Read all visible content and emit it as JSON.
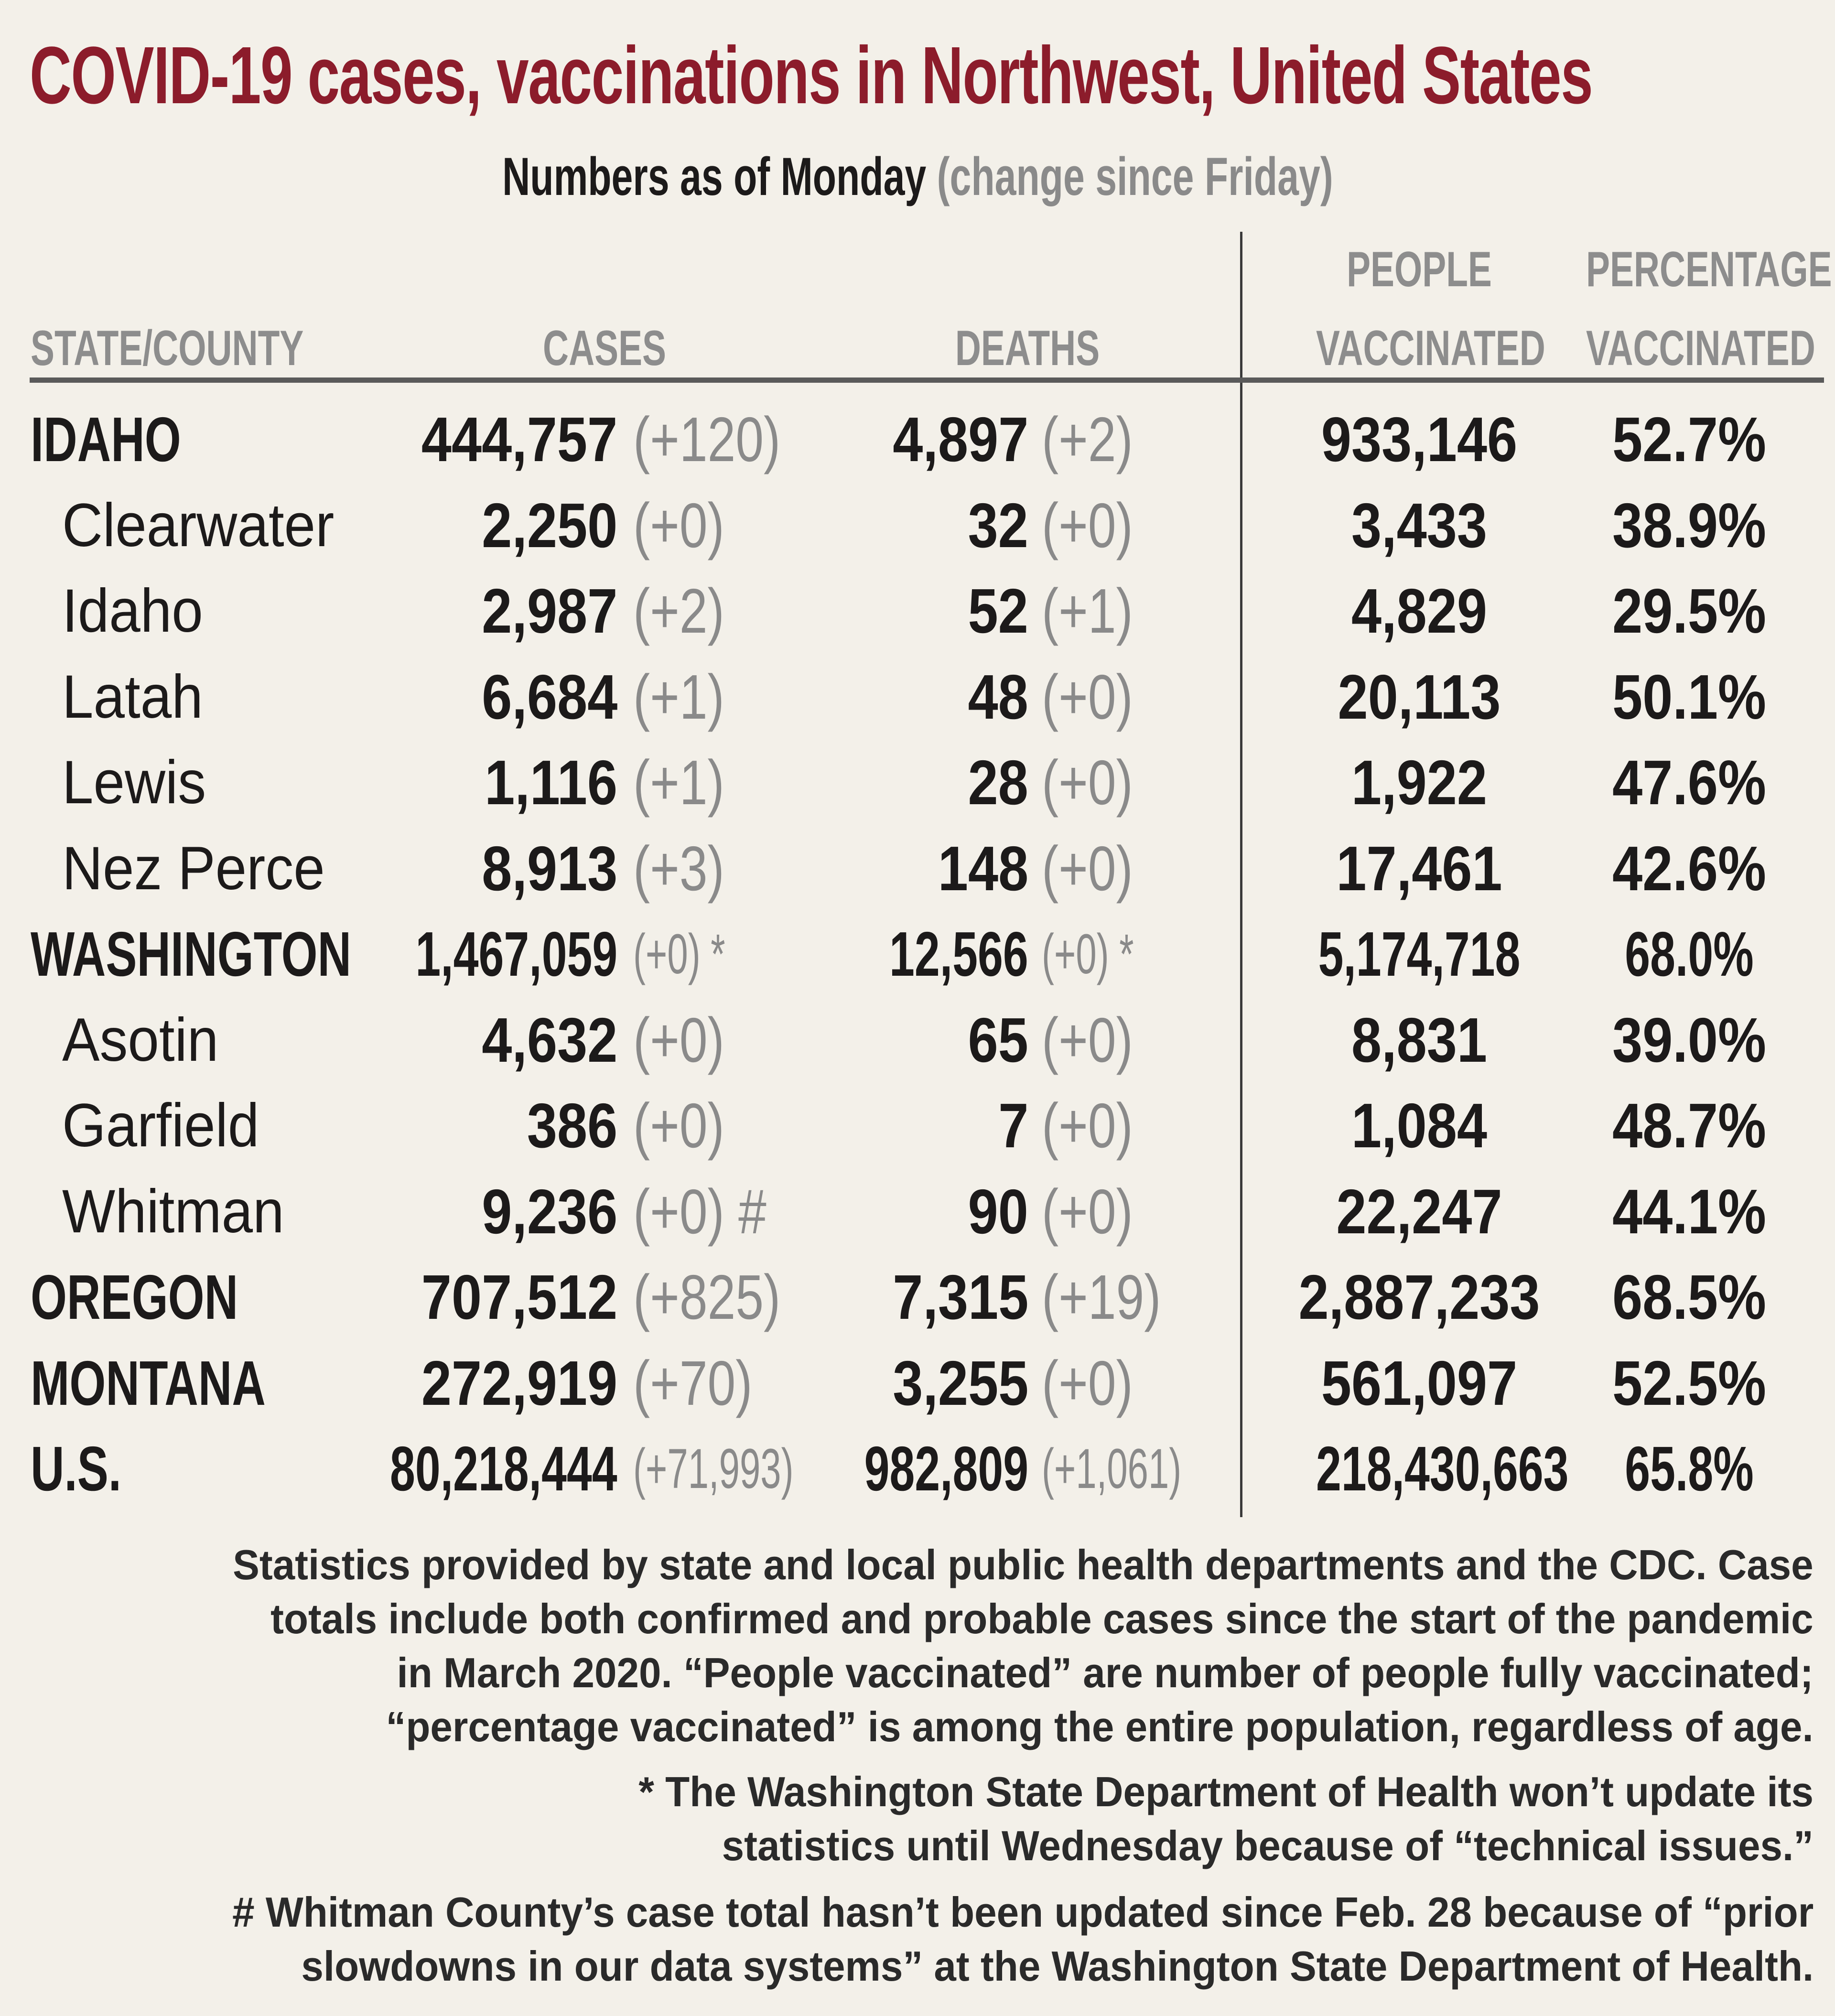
{
  "title": "COVID-19 cases, vaccinations in Northwest, United States",
  "subtitle": {
    "main": "Numbers as of Monday",
    "note": "(change since Friday)"
  },
  "headers": {
    "state": "STATE/COUNTY",
    "cases": "CASES",
    "deaths": "DEATHS",
    "people_line1": "PEOPLE",
    "people_line2": "VACCINATED",
    "pct_line1": "PERCENTAGE",
    "pct_line2": "VACCINATED"
  },
  "rows": [
    {
      "name": "IDAHO",
      "level": "state",
      "cases": "444,757",
      "cases_change": "(+120)",
      "deaths": "4,897",
      "deaths_change": "(+2)",
      "people": "933,146",
      "pct": "52.7%"
    },
    {
      "name": "Clearwater",
      "level": "county",
      "cases": "2,250",
      "cases_change": "(+0)",
      "deaths": "32",
      "deaths_change": "(+0)",
      "people": "3,433",
      "pct": "38.9%"
    },
    {
      "name": "Idaho",
      "level": "county",
      "cases": "2,987",
      "cases_change": "(+2)",
      "deaths": "52",
      "deaths_change": "(+1)",
      "people": "4,829",
      "pct": "29.5%"
    },
    {
      "name": "Latah",
      "level": "county",
      "cases": "6,684",
      "cases_change": "(+1)",
      "deaths": "48",
      "deaths_change": "(+0)",
      "people": "20,113",
      "pct": "50.1%"
    },
    {
      "name": "Lewis",
      "level": "county",
      "cases": "1,116",
      "cases_change": "(+1)",
      "deaths": "28",
      "deaths_change": "(+0)",
      "people": "1,922",
      "pct": "47.6%"
    },
    {
      "name": "Nez Perce",
      "level": "county",
      "cases": "8,913",
      "cases_change": "(+3)",
      "deaths": "148",
      "deaths_change": "(+0)",
      "people": "17,461",
      "pct": "42.6%"
    },
    {
      "name": "WASHINGTON",
      "level": "state",
      "small": true,
      "cases": "1,467,059",
      "cases_change": "(+0) *",
      "deaths": "12,566",
      "deaths_change": "(+0) *",
      "people": "5,174,718",
      "pct": "68.0%"
    },
    {
      "name": "Asotin",
      "level": "county",
      "cases": "4,632",
      "cases_change": "(+0)",
      "deaths": "65",
      "deaths_change": "(+0)",
      "people": "8,831",
      "pct": "39.0%"
    },
    {
      "name": "Garfield",
      "level": "county",
      "cases": "386",
      "cases_change": "(+0)",
      "deaths": "7",
      "deaths_change": "(+0)",
      "people": "1,084",
      "pct": "48.7%"
    },
    {
      "name": "Whitman",
      "level": "county",
      "cases": "9,236",
      "cases_change": "(+0) #",
      "deaths": "90",
      "deaths_change": "(+0)",
      "people": "22,247",
      "pct": "44.1%"
    },
    {
      "name": "OREGON",
      "level": "state",
      "cases": "707,512",
      "cases_change": "(+825)",
      "deaths": "7,315",
      "deaths_change": "(+19)",
      "people": "2,887,233",
      "pct": "68.5%"
    },
    {
      "name": "MONTANA",
      "level": "state",
      "cases": "272,919",
      "cases_change": "(+70)",
      "deaths": "3,255",
      "deaths_change": "(+0)",
      "people": "561,097",
      "pct": "52.5%"
    },
    {
      "name": "U.S.",
      "level": "state",
      "small": true,
      "cases": "80,218,444",
      "cases_change": "(+71,993)",
      "deaths": "982,809",
      "deaths_change": "(+1,061)",
      "people": "218,430,663",
      "pct": "65.8%"
    }
  ],
  "footnotes": [
    [
      "Statistics provided by state and local public health departments and the CDC. Case",
      "totals include both confirmed and probable cases since the start of the pandemic",
      "in March 2020. “People vaccinated” are number of people fully vaccinated;",
      "“percentage vaccinated” is among the entire population, regardless of age."
    ],
    [
      "* The Washington State Department of Health won’t update its",
      "statistics until Wednesday because of “technical issues.”"
    ],
    [
      "# Whitman County’s case total hasn’t been updated since Feb. 28 because of “prior",
      "slowdowns in our data systems” at the Washington State Department of Health."
    ]
  ],
  "colors": {
    "title": "#8c1c2b",
    "background": "#f3f0e9",
    "muted": "#8a8a8a"
  }
}
